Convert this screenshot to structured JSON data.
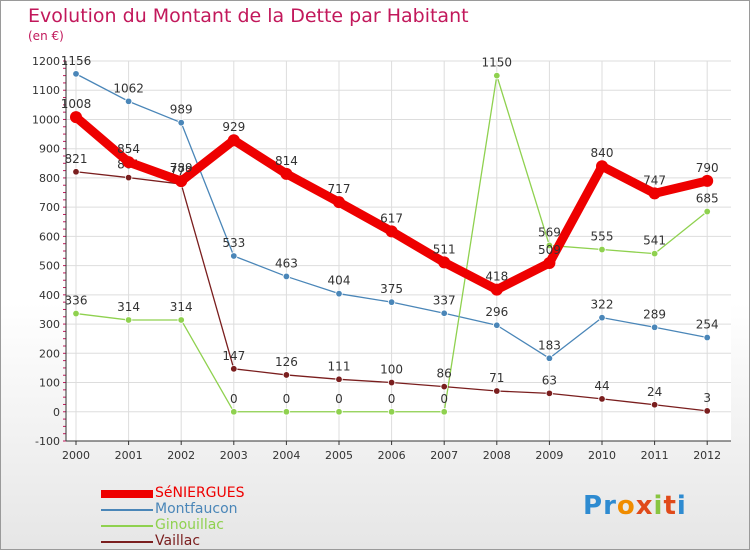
{
  "title": "Evolution du Montant de la Dette par Habitant",
  "subtitle": "(en €)",
  "logo": "Proxiti",
  "chart_data": {
    "type": "line",
    "title": "Evolution du Montant de la Dette par Habitant",
    "ylabel": "(en €)",
    "ylim": [
      -100,
      1200
    ],
    "yticks": [
      -100,
      0,
      100,
      200,
      300,
      400,
      500,
      600,
      700,
      800,
      900,
      1000,
      1100,
      1200
    ],
    "categories": [
      "2000",
      "2001",
      "2002",
      "2003",
      "2004",
      "2005",
      "2006",
      "2007",
      "2008",
      "2009",
      "2010",
      "2011",
      "2012"
    ],
    "grid": true,
    "legend_position": "bottom-left",
    "series": [
      {
        "name": "Montfaucon",
        "color": "#4a86b8",
        "values": [
          1156,
          1062,
          989,
          533,
          463,
          404,
          375,
          337,
          296,
          183,
          322,
          289,
          254
        ]
      },
      {
        "name": "Ginouillac",
        "color": "#8fd14f",
        "values": [
          336,
          314,
          314,
          0,
          0,
          0,
          0,
          0,
          1150,
          569,
          555,
          541,
          685
        ]
      },
      {
        "name": "Vaillac",
        "color": "#7a1e1e",
        "values": [
          821,
          801,
          779,
          147,
          126,
          111,
          100,
          86,
          71,
          63,
          44,
          24,
          3
        ]
      },
      {
        "name": "SéNIERGUES",
        "color": "#ee0000",
        "values": [
          1008,
          854,
          789,
          929,
          814,
          717,
          617,
          511,
          418,
          509,
          840,
          747,
          790
        ]
      }
    ],
    "legend_order": [
      "SéNIERGUES",
      "Montfaucon",
      "Ginouillac",
      "Vaillac"
    ]
  }
}
